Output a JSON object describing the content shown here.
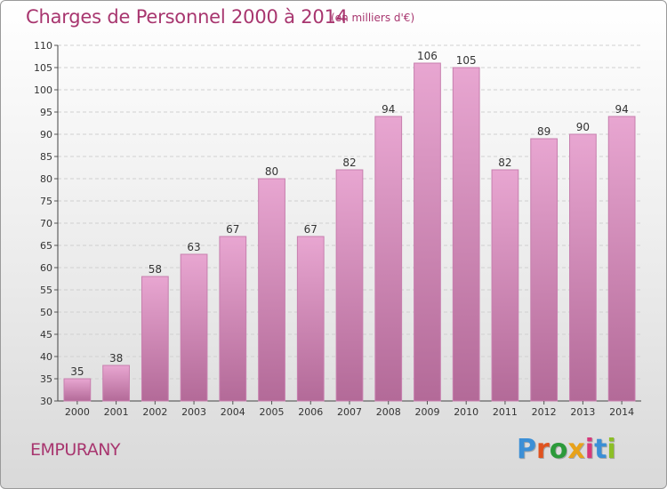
{
  "header": {
    "title": "Charges de Personnel 2000 à 2014",
    "unit": "(en milliers d'€)"
  },
  "footer": {
    "place": "EMPURANY",
    "logo_letters": [
      "P",
      "r",
      "o",
      "x",
      "i",
      "t",
      "i"
    ],
    "logo_colors": [
      "#3b8fd6",
      "#e0531f",
      "#2c9a3a",
      "#e8a21a",
      "#d6387a",
      "#3b8fd6",
      "#8cbf26"
    ]
  },
  "colors": {
    "bar_top": "#e8a6d1",
    "bar_bottom": "#b36a98",
    "bar_edge": "#c77fae",
    "text": "#333333",
    "title": "#a8366f"
  },
  "chart_data": {
    "type": "bar",
    "title": "Charges de Personnel 2000 à 2014",
    "subtitle": "(en milliers d'€)",
    "xlabel": "",
    "ylabel": "",
    "categories": [
      "2000",
      "2001",
      "2002",
      "2003",
      "2004",
      "2005",
      "2006",
      "2007",
      "2008",
      "2009",
      "2010",
      "2011",
      "2012",
      "2013",
      "2014"
    ],
    "values": [
      35,
      38,
      58,
      63,
      67,
      80,
      67,
      82,
      94,
      106,
      105,
      82,
      89,
      90,
      94
    ],
    "ylim": [
      30,
      110
    ],
    "yticks": [
      30,
      35,
      40,
      45,
      50,
      55,
      60,
      65,
      70,
      75,
      80,
      85,
      90,
      95,
      100,
      105,
      110
    ],
    "grid": true,
    "legend": "none"
  }
}
